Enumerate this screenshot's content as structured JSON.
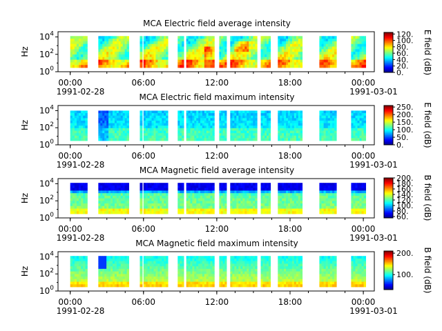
{
  "chart_data": [
    {
      "type": "heatmap",
      "title": "MCA  Electric field average intensity",
      "ylabel": "Hz",
      "y_scale": "log",
      "y_ticks": [
        {
          "exp": "0",
          "base": "10"
        },
        {
          "exp": "2",
          "base": "10"
        },
        {
          "exp": "4",
          "base": "10"
        }
      ],
      "x_tick_labels": [
        "00:00",
        "06:00",
        "12:00",
        "18:00",
        "00:00"
      ],
      "x_date_labels": [
        "1991-02-28",
        "1991-03-01"
      ],
      "colorbar_label": "E field (dB)",
      "colorbar_ticks": [
        "0.",
        "20.",
        "40.",
        "60.",
        "80.",
        "100.",
        "120."
      ],
      "colorbar_range": [
        0,
        125
      ],
      "colormap": "jet",
      "intensity": "average"
    },
    {
      "type": "heatmap",
      "title": "MCA  Electric field maximum intensity",
      "ylabel": "Hz",
      "y_scale": "log",
      "y_ticks": [
        {
          "exp": "0",
          "base": "10"
        },
        {
          "exp": "2",
          "base": "10"
        },
        {
          "exp": "4",
          "base": "10"
        }
      ],
      "x_tick_labels": [
        "00:00",
        "06:00",
        "12:00",
        "18:00",
        "00:00"
      ],
      "x_date_labels": [
        "1991-02-28",
        "1991-03-01"
      ],
      "colorbar_label": "E field (dB)",
      "colorbar_ticks": [
        "0.",
        "50.",
        "100.",
        "150.",
        "200.",
        "250."
      ],
      "colorbar_range": [
        0,
        260
      ],
      "colormap": "jet",
      "intensity": "maximum"
    },
    {
      "type": "heatmap",
      "title": "MCA  Magnetic field average intensity",
      "ylabel": "Hz",
      "y_scale": "log",
      "y_ticks": [
        {
          "exp": "0",
          "base": "10"
        },
        {
          "exp": "2",
          "base": "10"
        },
        {
          "exp": "4",
          "base": "10"
        }
      ],
      "x_tick_labels": [
        "00:00",
        "06:00",
        "12:00",
        "18:00",
        "00:00"
      ],
      "x_date_labels": [
        "1991-02-28",
        "1991-03-01"
      ],
      "colorbar_label": "B field (dB)",
      "colorbar_ticks": [
        "60.",
        "80.",
        "100.",
        "120.",
        "140.",
        "160.",
        "180.",
        "200."
      ],
      "colorbar_range": [
        55,
        200
      ],
      "colormap": "jet",
      "intensity": "average"
    },
    {
      "type": "heatmap",
      "title": "MCA  Magnetic field maximum intensity",
      "ylabel": "Hz",
      "y_scale": "log",
      "y_ticks": [
        {
          "exp": "0",
          "base": "10"
        },
        {
          "exp": "2",
          "base": "10"
        },
        {
          "exp": "4",
          "base": "10"
        }
      ],
      "x_tick_labels": [
        "00:00",
        "06:00",
        "12:00",
        "18:00",
        "00:00"
      ],
      "x_date_labels": [
        "1991-02-28",
        "1991-03-01"
      ],
      "colorbar_label": "B field (dB)",
      "colorbar_ticks": [
        "100.",
        "200."
      ],
      "colorbar_range": [
        30,
        210
      ],
      "colormap": "jet",
      "intensity": "maximum"
    }
  ],
  "shared": {
    "x_range_hours": [
      -1,
      24.9
    ],
    "x_major_ticks_hours": [
      0,
      6,
      12,
      18,
      24
    ],
    "x_minor_tick_step_hours": 1.5,
    "data_intervals_hours": [
      [
        0.0,
        1.4
      ],
      [
        2.3,
        4.8
      ],
      [
        5.7,
        5.9
      ],
      [
        6.0,
        8.0
      ],
      [
        8.8,
        9.3
      ],
      [
        9.5,
        11.8
      ],
      [
        12.2,
        12.8
      ],
      [
        13.1,
        15.3
      ],
      [
        15.6,
        16.4
      ],
      [
        17.0,
        19.0
      ],
      [
        20.4,
        21.8
      ],
      [
        23.0,
        24.2
      ]
    ]
  },
  "colors": {
    "jet": [
      "#00007f",
      "#0000ff",
      "#007fff",
      "#00ffff",
      "#7fff7f",
      "#ffff00",
      "#ff7f00",
      "#ff0000",
      "#7f0000"
    ]
  }
}
